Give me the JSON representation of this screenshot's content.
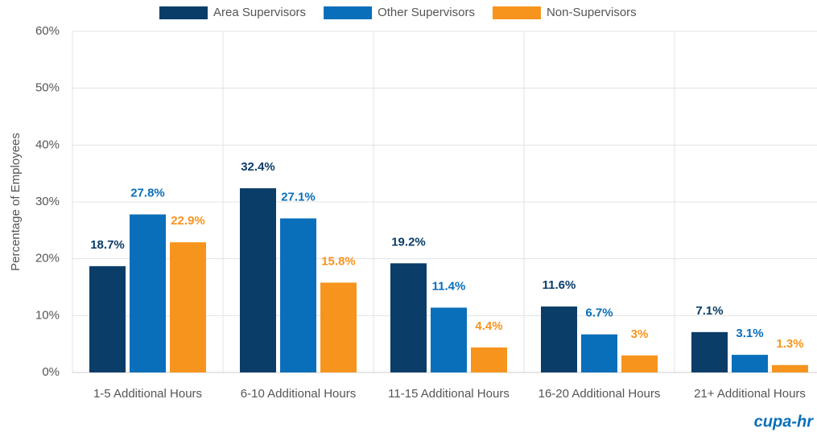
{
  "chart_data": {
    "type": "bar",
    "y_axis_label": "Percentage of Employees",
    "categories": [
      "1-5 Additional Hours",
      "6-10 Additional Hours",
      "11-15 Additional Hours",
      "16-20 Additional Hours",
      "21+ Additional Hours"
    ],
    "series": [
      {
        "name": "Area Supervisors",
        "color": "#0b3d69",
        "values": [
          18.7,
          32.4,
          19.2,
          11.6,
          7.1
        ],
        "value_labels": [
          "18.7%",
          "32.4%",
          "19.2%",
          "11.6%",
          "7.1%"
        ]
      },
      {
        "name": "Other Supervisors",
        "color": "#0a6fba",
        "values": [
          27.8,
          27.1,
          11.4,
          6.7,
          3.1
        ],
        "value_labels": [
          "27.8%",
          "27.1%",
          "11.4%",
          "6.7%",
          "3.1%"
        ]
      },
      {
        "name": "Non-Supervisors",
        "color": "#f7941d",
        "values": [
          22.9,
          15.8,
          4.4,
          3,
          1.3
        ],
        "value_labels": [
          "22.9%",
          "15.8%",
          "4.4%",
          "3%",
          "1.3%"
        ]
      }
    ],
    "ylim": [
      0,
      60
    ],
    "yticks": [
      {
        "value": 0,
        "label": "0%"
      },
      {
        "value": 10,
        "label": "10%"
      },
      {
        "value": 20,
        "label": "20%"
      },
      {
        "value": 30,
        "label": "30%"
      },
      {
        "value": 40,
        "label": "40%"
      },
      {
        "value": 50,
        "label": "50%"
      },
      {
        "value": 60,
        "label": "60%"
      }
    ],
    "grid": true,
    "legend": "top",
    "logo": "cupa-hr"
  }
}
